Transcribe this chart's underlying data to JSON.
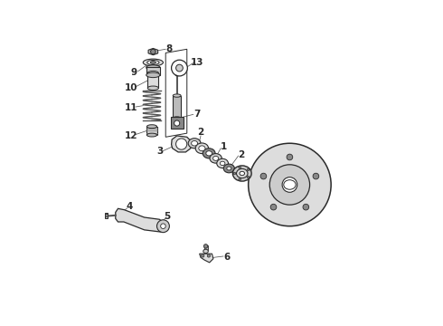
{
  "bg_color": "#ffffff",
  "line_color": "#2a2a2a",
  "gray_dark": "#555555",
  "gray_mid": "#888888",
  "gray_light": "#bbbbbb",
  "gray_lighter": "#dddddd",
  "gray_fill": "#cccccc",
  "white": "#ffffff"
}
